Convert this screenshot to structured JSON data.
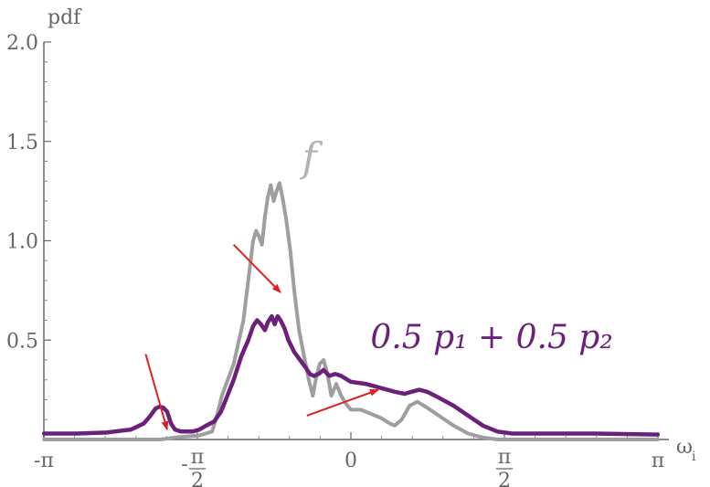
{
  "chart_data": {
    "type": "line",
    "title": "",
    "xlabel": "ω",
    "xlabel_sub": "i",
    "ylabel": "pdf",
    "xlim": [
      -3.14159,
      3.14159
    ],
    "ylim": [
      0,
      2.0
    ],
    "grid": false,
    "x_ticks": [
      {
        "value": -3.14159,
        "label": "-π"
      },
      {
        "value": -1.5708,
        "label": "π",
        "fraction": true,
        "sign": "-",
        "denominator": "2"
      },
      {
        "value": 0,
        "label": "0"
      },
      {
        "value": 1.5708,
        "label": "π",
        "fraction": true,
        "sign": "",
        "denominator": "2"
      },
      {
        "value": 3.14159,
        "label": "π"
      }
    ],
    "y_ticks": [
      {
        "value": 0.5,
        "label": "0.5"
      },
      {
        "value": 1.0,
        "label": "1.0"
      },
      {
        "value": 1.5,
        "label": "1.5"
      },
      {
        "value": 2.0,
        "label": "2.0"
      }
    ],
    "series": [
      {
        "name": "f",
        "color": "#9e9e9e",
        "points": [
          [
            -3.14,
            0.0
          ],
          [
            -2.5,
            0.0
          ],
          [
            -2.1,
            0.0
          ],
          [
            -1.95,
            0.0
          ],
          [
            -1.8,
            0.01
          ],
          [
            -1.55,
            0.02
          ],
          [
            -1.42,
            0.04
          ],
          [
            -1.37,
            0.12
          ],
          [
            -1.32,
            0.22
          ],
          [
            -1.2,
            0.38
          ],
          [
            -1.1,
            0.6
          ],
          [
            -1.05,
            0.8
          ],
          [
            -1.0,
            1.0
          ],
          [
            -0.97,
            1.05
          ],
          [
            -0.94,
            1.02
          ],
          [
            -0.91,
            0.98
          ],
          [
            -0.88,
            1.12
          ],
          [
            -0.85,
            1.22
          ],
          [
            -0.82,
            1.28
          ],
          [
            -0.79,
            1.2
          ],
          [
            -0.76,
            1.25
          ],
          [
            -0.73,
            1.29
          ],
          [
            -0.7,
            1.22
          ],
          [
            -0.66,
            1.1
          ],
          [
            -0.62,
            0.95
          ],
          [
            -0.58,
            0.75
          ],
          [
            -0.53,
            0.55
          ],
          [
            -0.48,
            0.42
          ],
          [
            -0.43,
            0.3
          ],
          [
            -0.39,
            0.22
          ],
          [
            -0.36,
            0.3
          ],
          [
            -0.32,
            0.38
          ],
          [
            -0.28,
            0.4
          ],
          [
            -0.24,
            0.33
          ],
          [
            -0.2,
            0.22
          ],
          [
            -0.15,
            0.28
          ],
          [
            -0.1,
            0.22
          ],
          [
            -0.05,
            0.18
          ],
          [
            0.0,
            0.15
          ],
          [
            0.1,
            0.15
          ],
          [
            0.2,
            0.13
          ],
          [
            0.3,
            0.11
          ],
          [
            0.4,
            0.08
          ],
          [
            0.45,
            0.07
          ],
          [
            0.52,
            0.1
          ],
          [
            0.6,
            0.17
          ],
          [
            0.68,
            0.19
          ],
          [
            0.78,
            0.16
          ],
          [
            0.9,
            0.12
          ],
          [
            1.05,
            0.07
          ],
          [
            1.2,
            0.03
          ],
          [
            1.35,
            0.01
          ],
          [
            1.5,
            0.0
          ],
          [
            2.0,
            0.0
          ],
          [
            2.6,
            0.0
          ],
          [
            3.14,
            0.0
          ]
        ]
      },
      {
        "name": "0.5 p₁ + 0.5 p₂",
        "color": "#6b2079",
        "points": [
          [
            -3.14,
            0.03
          ],
          [
            -2.8,
            0.03
          ],
          [
            -2.5,
            0.035
          ],
          [
            -2.25,
            0.05
          ],
          [
            -2.12,
            0.08
          ],
          [
            -2.05,
            0.12
          ],
          [
            -2.0,
            0.155
          ],
          [
            -1.96,
            0.165
          ],
          [
            -1.92,
            0.16
          ],
          [
            -1.88,
            0.14
          ],
          [
            -1.84,
            0.08
          ],
          [
            -1.8,
            0.05
          ],
          [
            -1.74,
            0.04
          ],
          [
            -1.62,
            0.04
          ],
          [
            -1.55,
            0.05
          ],
          [
            -1.48,
            0.07
          ],
          [
            -1.4,
            0.09
          ],
          [
            -1.33,
            0.14
          ],
          [
            -1.28,
            0.2
          ],
          [
            -1.2,
            0.3
          ],
          [
            -1.12,
            0.42
          ],
          [
            -1.05,
            0.5
          ],
          [
            -1.0,
            0.57
          ],
          [
            -0.96,
            0.6
          ],
          [
            -0.92,
            0.58
          ],
          [
            -0.88,
            0.55
          ],
          [
            -0.85,
            0.59
          ],
          [
            -0.81,
            0.62
          ],
          [
            -0.78,
            0.58
          ],
          [
            -0.75,
            0.62
          ],
          [
            -0.72,
            0.6
          ],
          [
            -0.68,
            0.56
          ],
          [
            -0.64,
            0.5
          ],
          [
            -0.58,
            0.44
          ],
          [
            -0.52,
            0.4
          ],
          [
            -0.46,
            0.36
          ],
          [
            -0.42,
            0.33
          ],
          [
            -0.38,
            0.32
          ],
          [
            -0.33,
            0.33
          ],
          [
            -0.28,
            0.35
          ],
          [
            -0.22,
            0.32
          ],
          [
            -0.16,
            0.33
          ],
          [
            -0.1,
            0.32
          ],
          [
            0.0,
            0.29
          ],
          [
            0.15,
            0.28
          ],
          [
            0.3,
            0.26
          ],
          [
            0.45,
            0.24
          ],
          [
            0.55,
            0.23
          ],
          [
            0.62,
            0.24
          ],
          [
            0.7,
            0.25
          ],
          [
            0.78,
            0.24
          ],
          [
            0.9,
            0.21
          ],
          [
            1.05,
            0.17
          ],
          [
            1.2,
            0.12
          ],
          [
            1.35,
            0.07
          ],
          [
            1.5,
            0.04
          ],
          [
            1.65,
            0.03
          ],
          [
            2.0,
            0.03
          ],
          [
            2.5,
            0.03
          ],
          [
            3.14,
            0.025
          ]
        ]
      }
    ],
    "annotations": [
      {
        "text": "f",
        "color": "#b3b3b3",
        "x": -0.5,
        "y": 1.35
      },
      {
        "text": "0.5 p₁ + 0.5 p₂",
        "color": "#6b2079",
        "x": 0.2,
        "y": 0.46
      }
    ],
    "arrows": [
      {
        "from": [
          -1.2,
          0.98
        ],
        "to": [
          -0.72,
          0.74
        ],
        "color": "#e02020"
      },
      {
        "from": [
          -2.1,
          0.43
        ],
        "to": [
          -1.88,
          0.05
        ],
        "color": "#e02020"
      },
      {
        "from": [
          -0.45,
          0.12
        ],
        "to": [
          0.28,
          0.25
        ],
        "color": "#e02020"
      }
    ]
  }
}
